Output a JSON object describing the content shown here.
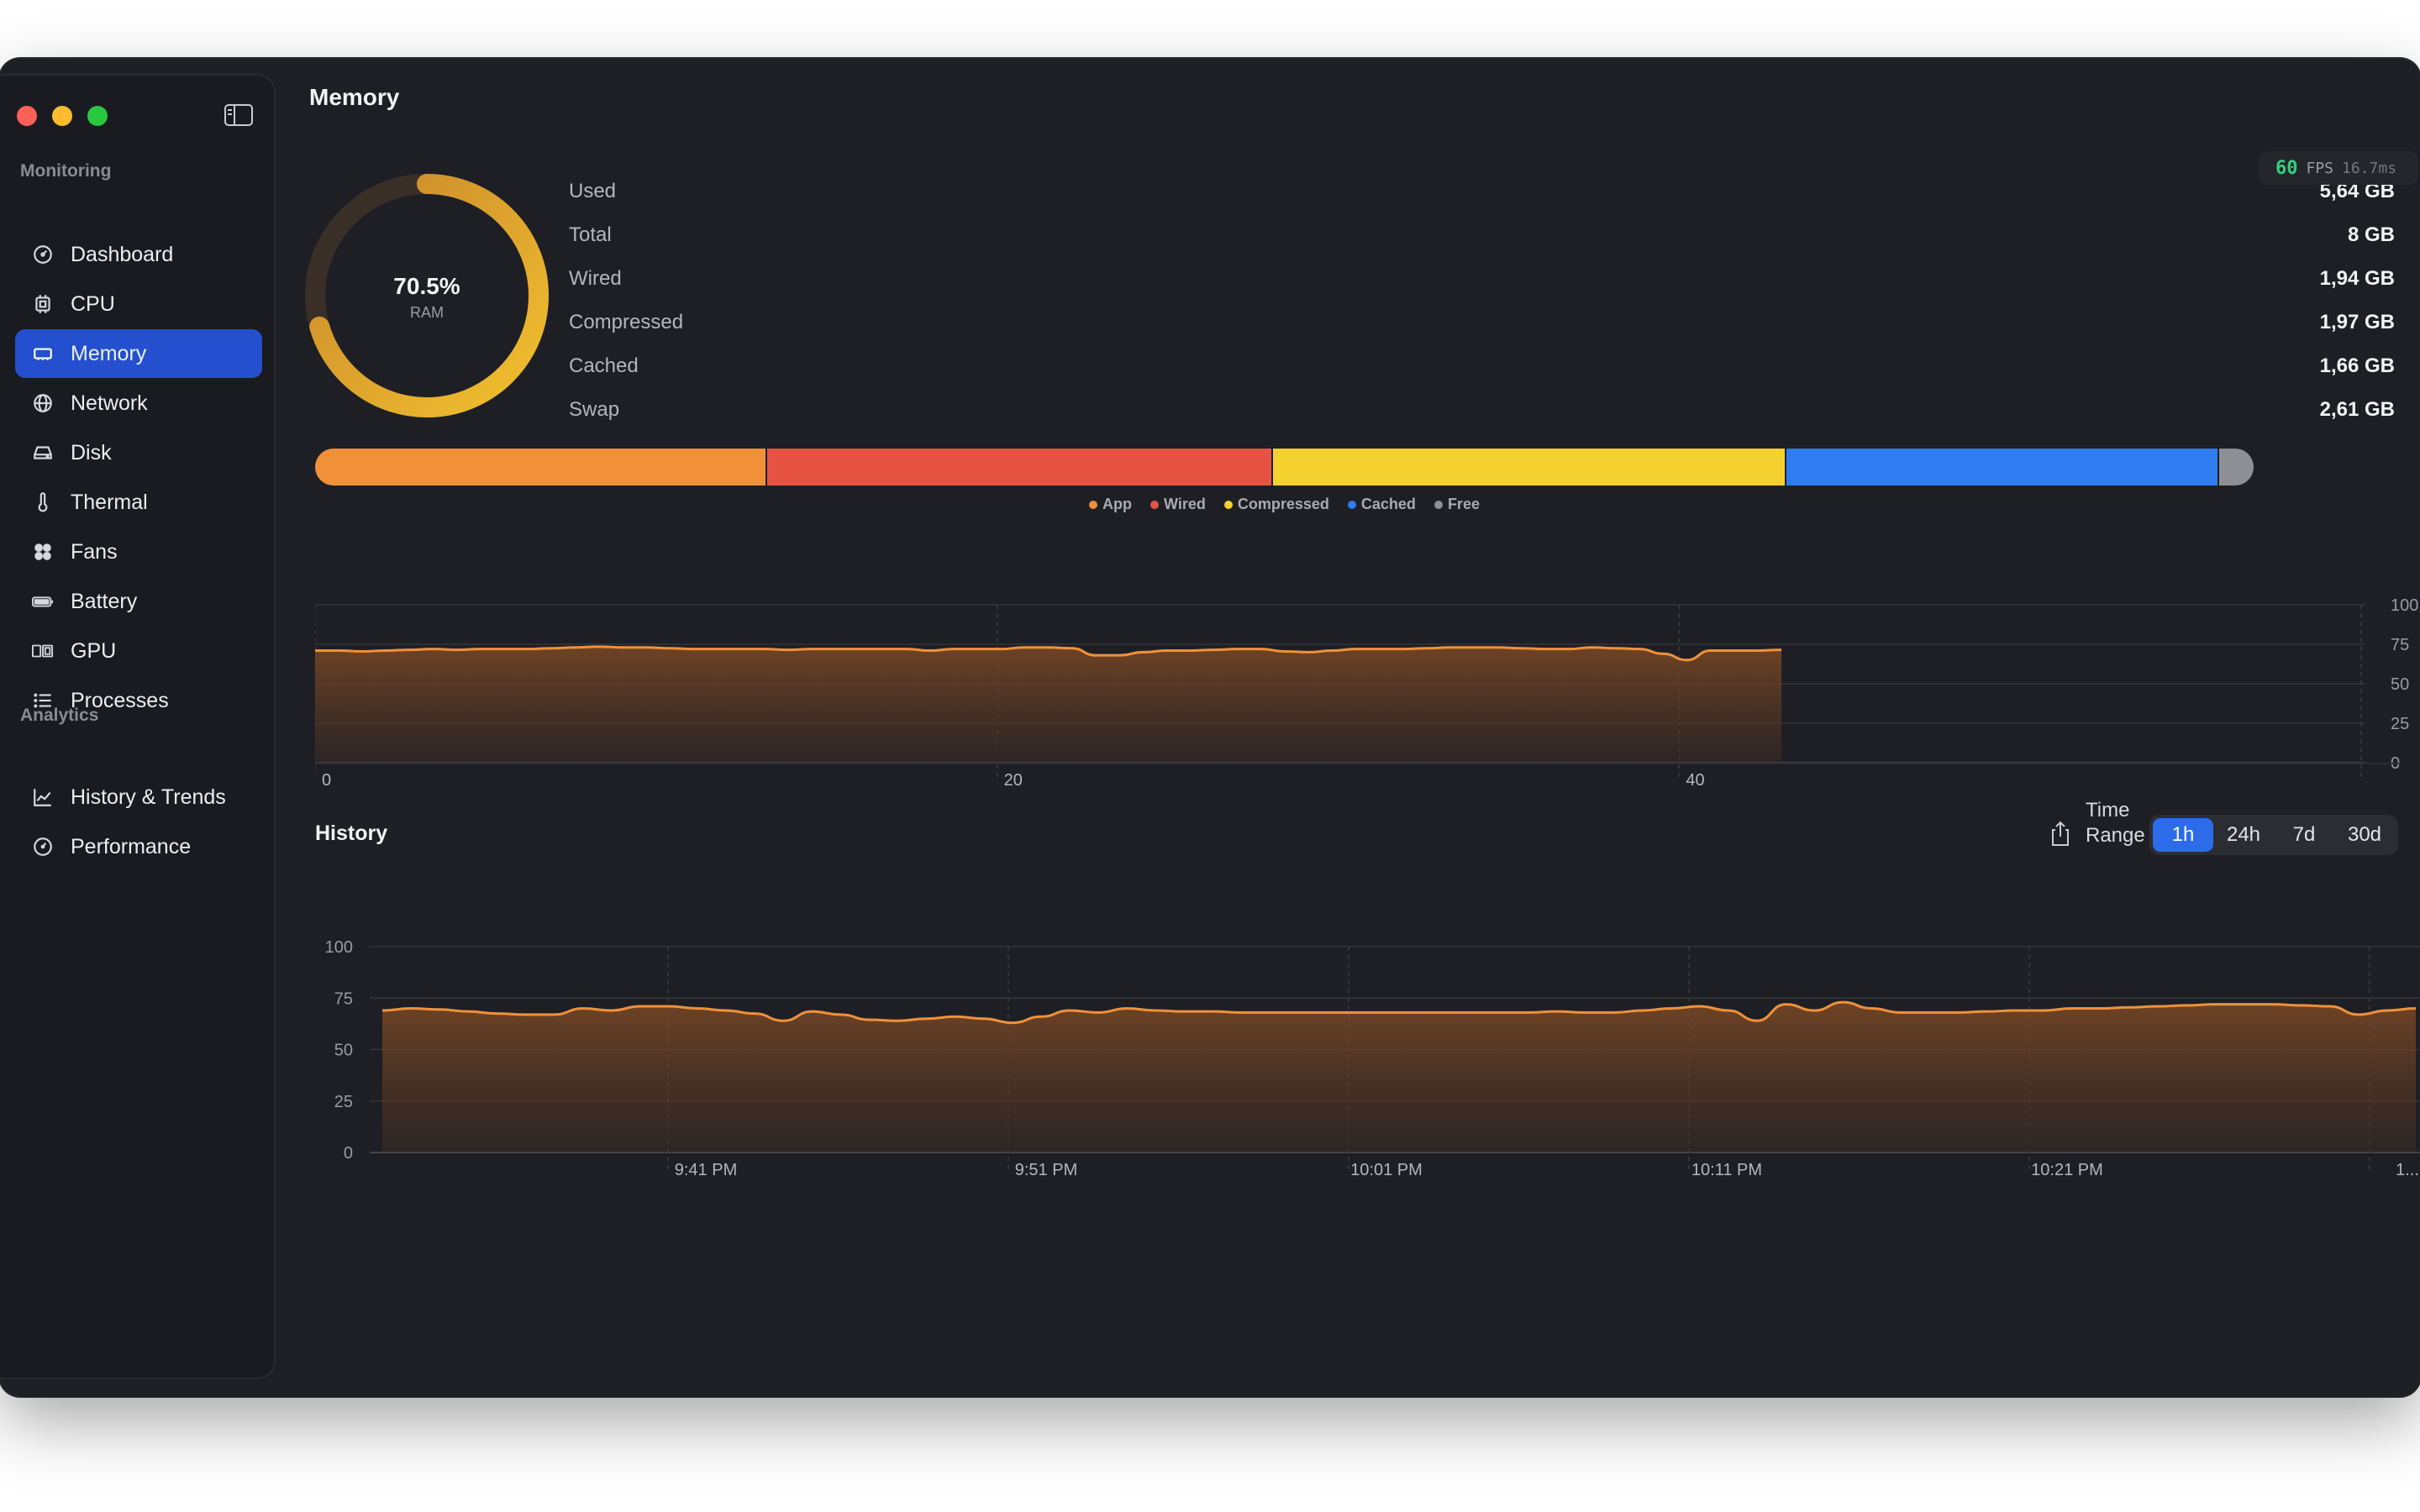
{
  "sidebar": {
    "sections": [
      {
        "label": "Monitoring"
      },
      {
        "label": "Analytics"
      }
    ],
    "items": [
      {
        "label": "Dashboard",
        "icon": "dashboard-icon"
      },
      {
        "label": "CPU",
        "icon": "cpu-icon"
      },
      {
        "label": "Memory",
        "icon": "memory-icon",
        "active": true
      },
      {
        "label": "Network",
        "icon": "globe-icon"
      },
      {
        "label": "Disk",
        "icon": "disk-icon"
      },
      {
        "label": "Thermal",
        "icon": "thermometer-icon"
      },
      {
        "label": "Fans",
        "icon": "fan-icon"
      },
      {
        "label": "Battery",
        "icon": "battery-icon"
      },
      {
        "label": "GPU",
        "icon": "gpu-icon"
      },
      {
        "label": "Processes",
        "icon": "list-icon"
      },
      {
        "label": "History & Trends",
        "icon": "chart-line-icon"
      },
      {
        "label": "Performance",
        "icon": "gauge-icon"
      }
    ]
  },
  "header": {
    "title": "Memory"
  },
  "fps": {
    "value": "60",
    "label": "FPS",
    "ms": "16.7ms"
  },
  "gauge": {
    "percent_text": "70.5%",
    "label": "RAM",
    "fraction": 0.705,
    "color_start": "#e9b72f",
    "color_end": "#d08a2a"
  },
  "stats": [
    {
      "label": "Used",
      "value": "5,64 GB"
    },
    {
      "label": "Total",
      "value": "8 GB"
    },
    {
      "label": "Wired",
      "value": "1,94 GB"
    },
    {
      "label": "Compressed",
      "value": "1,97 GB"
    },
    {
      "label": "Cached",
      "value": "1,66 GB"
    },
    {
      "label": "Swap",
      "value": "2,61 GB"
    }
  ],
  "breakdown": [
    {
      "name": "App",
      "fraction": 0.233,
      "color": "#f0913a"
    },
    {
      "name": "Wired",
      "fraction": 0.261,
      "color": "#e65343"
    },
    {
      "name": "Compressed",
      "fraction": 0.265,
      "color": "#f5d12f"
    },
    {
      "name": "Cached",
      "fraction": 0.223,
      "color": "#2f7cf0"
    },
    {
      "name": "Free",
      "fraction": 0.018,
      "color": "#8e8f94"
    }
  ],
  "history": {
    "title": "History",
    "time_range_label": "Time Range",
    "ranges": [
      "1h",
      "24h",
      "7d",
      "30d"
    ],
    "active_range": "1h"
  },
  "colors": {
    "accent": "#2450cf",
    "line": "#f0913a"
  },
  "chart_data": [
    {
      "type": "area",
      "x_ticks": [
        "0",
        "20",
        "40"
      ],
      "y_ticks": [
        "100",
        "75",
        "50",
        "25",
        "0"
      ],
      "ylim": [
        0,
        100
      ],
      "xlim": [
        0,
        60
      ],
      "grid": true,
      "series": [
        {
          "values": [
            71,
            71,
            70.5,
            71,
            71.5,
            72,
            71.5,
            72,
            72,
            72,
            72.5,
            73,
            73.5,
            73,
            73,
            72.5,
            72,
            72,
            72,
            72,
            71.5,
            72,
            72,
            72,
            72,
            72,
            71,
            72,
            72,
            72,
            73,
            73,
            72.5,
            68,
            68,
            70,
            71,
            71,
            71.5,
            72,
            72,
            70.5,
            70,
            71,
            72,
            72,
            72,
            72.5,
            73,
            73,
            73,
            72.5,
            72,
            72,
            73,
            72.5,
            72,
            69,
            65,
            71,
            71,
            71,
            71.5
          ]
        }
      ]
    },
    {
      "type": "area",
      "x_ticks": [
        "9:41 PM",
        "9:51 PM",
        "10:01 PM",
        "10:11 PM",
        "10:21 PM",
        "1..."
      ],
      "y_ticks": [
        "100",
        "75",
        "50",
        "25",
        "0"
      ],
      "ylim": [
        0,
        100
      ],
      "grid": true,
      "series": [
        {
          "values": [
            69,
            70,
            69.5,
            68.5,
            67.5,
            67,
            67,
            70,
            69,
            71,
            71,
            70,
            69,
            67.5,
            64,
            68.5,
            67,
            64.5,
            64,
            65,
            66,
            65,
            63,
            66,
            69,
            68,
            70,
            69,
            68.5,
            68.5,
            68,
            68,
            68,
            68,
            68,
            68,
            68,
            68,
            68,
            68,
            68,
            68.5,
            68,
            68,
            69,
            70,
            71,
            69,
            64,
            72,
            69,
            73,
            70,
            68,
            68,
            68,
            68.5,
            69,
            69,
            70,
            70,
            70.5,
            71,
            71.5,
            72,
            72,
            72,
            71.5,
            71,
            67,
            69,
            70
          ]
        }
      ]
    }
  ]
}
